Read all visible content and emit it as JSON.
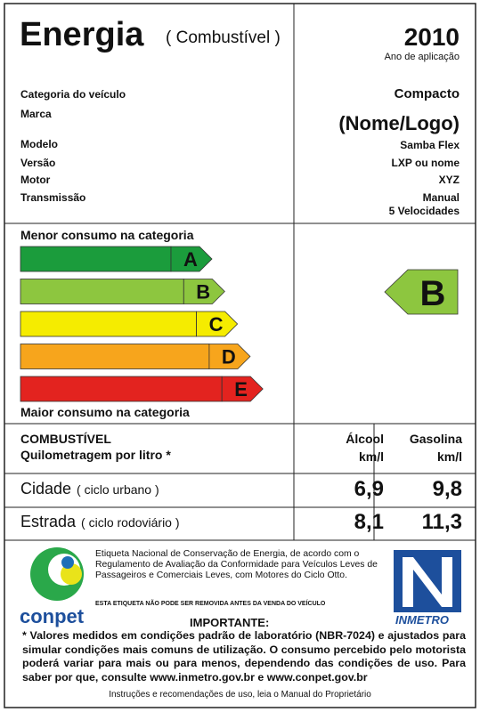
{
  "header": {
    "title": "Energia",
    "subtitle": "( Combustível )",
    "year": "2010",
    "year_label": "Ano de aplicação"
  },
  "vehicle": {
    "rows": [
      {
        "label": "Categoria do veículo",
        "values": [
          "Compacto"
        ]
      },
      {
        "label": "Marca",
        "values": [
          "(Nome/Logo)"
        ]
      },
      {
        "label": "Modelo",
        "values": [
          "Samba Flex"
        ]
      },
      {
        "label": "Versão",
        "values": [
          "LXP ou nome"
        ]
      },
      {
        "label": "Motor",
        "values": [
          "XYZ"
        ]
      },
      {
        "label": "Transmissão",
        "values": [
          "Manual",
          "5 Velocidades"
        ]
      }
    ]
  },
  "efficiency": {
    "top_label": "Menor consumo na categoria",
    "bottom_label": "Maior consumo na categoria",
    "classes": [
      {
        "letter": "A",
        "color": "#1b9c3c"
      },
      {
        "letter": "B",
        "color": "#8dc63f"
      },
      {
        "letter": "C",
        "color": "#f5ec00"
      },
      {
        "letter": "D",
        "color": "#f7a51c"
      },
      {
        "letter": "E",
        "color": "#e3231f"
      }
    ],
    "rating": "B"
  },
  "table": {
    "header": [
      "COMBUSTÍVEL",
      "Quilometragem por litro *"
    ],
    "columns": [
      {
        "name": "Álcool",
        "unit": "km/l"
      },
      {
        "name": "Gasolina",
        "unit": "km/l"
      }
    ],
    "rows": [
      {
        "label": "Cidade",
        "note": "( ciclo urbano )",
        "values": [
          "6,9",
          "9,8"
        ]
      },
      {
        "label": "Estrada",
        "note": "( ciclo rodoviário )",
        "values": [
          "8,1",
          "11,3"
        ]
      }
    ]
  },
  "footer": {
    "logo_left": "conpet",
    "text": "Etiqueta Nacional de Conservação de Energia, de acordo com o Regulamento de Avaliação da Conformidade para Veículos Leves de Passageiros e Comerciais Leves, com Motores do Ciclo Otto.",
    "warning": "ESTA ETIQUETA NÃO PODE SER REMOVIDA ANTES DA VENDA DO VEÍCULO",
    "logo_right": "INMETRO",
    "important_title": "IMPORTANTE:",
    "important_text": "* Valores medidos em condições padrão de laboratório (NBR-7024) e ajustados para simular condições mais comuns de utilização. O consumo percebido pelo motorista poderá variar para mais ou para menos, dependendo das condições de uso. Para saber por que, consulte www.inmetro.gov.br e www.conpet.gov.br",
    "instructions": "Instruções e recomendações de uso, leia o Manual do Proprietário"
  }
}
